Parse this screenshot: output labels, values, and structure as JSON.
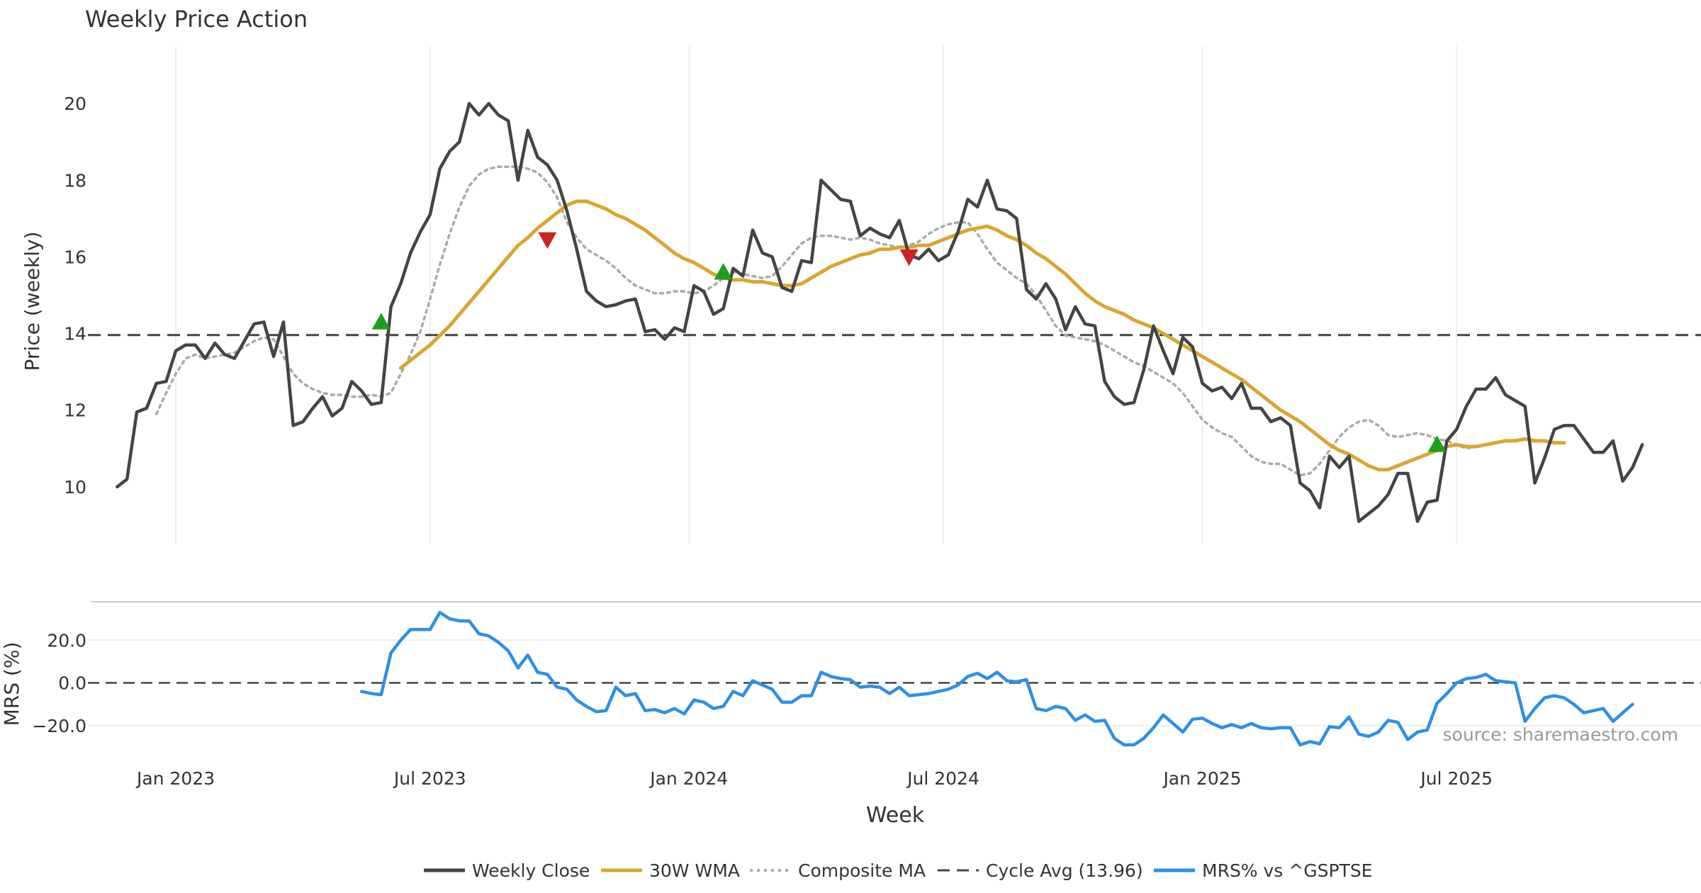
{
  "chart_data": {
    "type": "line",
    "title": "Weekly Price Action",
    "xlabel": "Week",
    "x_ticks": [
      {
        "label": "Jan 2023",
        "week": 6
      },
      {
        "label": "Jul 2023",
        "week": 32
      },
      {
        "label": "Jan 2024",
        "week": 58.5
      },
      {
        "label": "Jul 2024",
        "week": 84.5
      },
      {
        "label": "Jan 2025",
        "week": 111
      },
      {
        "label": "Jul 2025",
        "week": 137
      }
    ],
    "x_range": [
      -3,
      162
    ],
    "price_panel": {
      "ylabel": "Price (weekly)",
      "ylim": [
        8.5,
        21.5
      ],
      "yticks": [
        10,
        12,
        14,
        16,
        18,
        20
      ],
      "cycle_avg": 13.96,
      "series": [
        {
          "name": "Weekly Close",
          "color": "#444444",
          "start_week": 0,
          "values": [
            10.0,
            10.2,
            11.95,
            12.05,
            12.7,
            12.75,
            13.55,
            13.7,
            13.7,
            13.35,
            13.75,
            13.45,
            13.35,
            13.8,
            14.25,
            14.3,
            13.4,
            14.3,
            11.6,
            11.7,
            12.05,
            12.35,
            11.85,
            12.05,
            12.75,
            12.5,
            12.15,
            12.2,
            14.7,
            15.3,
            16.1,
            16.65,
            17.1,
            18.3,
            18.75,
            19.0,
            20.0,
            19.7,
            20.0,
            19.7,
            19.55,
            18.0,
            19.3,
            18.6,
            18.4,
            18.0,
            17.2,
            16.2,
            15.1,
            14.85,
            14.7,
            14.75,
            14.85,
            14.9,
            14.05,
            14.1,
            13.85,
            14.15,
            14.05,
            15.25,
            15.1,
            14.5,
            14.65,
            15.7,
            15.5,
            16.7,
            16.1,
            16.0,
            15.2,
            15.1,
            15.9,
            15.85,
            18.0,
            17.75,
            17.5,
            17.45,
            16.55,
            16.75,
            16.6,
            16.5,
            16.95,
            16.05,
            15.95,
            16.2,
            15.9,
            16.05,
            16.65,
            17.5,
            17.3,
            18.0,
            17.25,
            17.2,
            17.0,
            15.15,
            14.9,
            15.3,
            14.9,
            14.1,
            14.7,
            14.25,
            14.2,
            12.75,
            12.35,
            12.15,
            12.2,
            13.05,
            14.2,
            13.55,
            12.95,
            13.9,
            13.65,
            12.7,
            12.5,
            12.6,
            12.3,
            12.7,
            12.05,
            12.05,
            11.7,
            11.8,
            11.6,
            10.1,
            9.9,
            9.45,
            10.8,
            10.5,
            10.8,
            9.1,
            9.3,
            9.5,
            9.8,
            10.35,
            10.35,
            9.1,
            9.6,
            9.65,
            11.2,
            11.5,
            12.1,
            12.55,
            12.55,
            12.85,
            12.4,
            12.25,
            12.1,
            10.1,
            10.75,
            11.5,
            11.6,
            11.6,
            11.25,
            10.9,
            10.9,
            11.2,
            10.15,
            10.5,
            11.1
          ]
        },
        {
          "name": "30W WMA",
          "color": "#D9A62E",
          "start_week": 29,
          "values": [
            13.1,
            13.3,
            13.5,
            13.7,
            13.95,
            14.2,
            14.5,
            14.8,
            15.1,
            15.4,
            15.7,
            16.0,
            16.3,
            16.5,
            16.75,
            16.95,
            17.15,
            17.35,
            17.45,
            17.45,
            17.35,
            17.25,
            17.1,
            17.0,
            16.85,
            16.7,
            16.5,
            16.3,
            16.1,
            15.95,
            15.85,
            15.7,
            15.55,
            15.45,
            15.4,
            15.4,
            15.35,
            15.35,
            15.3,
            15.25,
            15.25,
            15.3,
            15.45,
            15.6,
            15.75,
            15.85,
            15.95,
            16.05,
            16.1,
            16.2,
            16.2,
            16.25,
            16.25,
            16.3,
            16.3,
            16.4,
            16.5,
            16.6,
            16.7,
            16.75,
            16.8,
            16.7,
            16.55,
            16.45,
            16.3,
            16.1,
            15.95,
            15.75,
            15.55,
            15.3,
            15.05,
            14.85,
            14.7,
            14.6,
            14.5,
            14.35,
            14.25,
            14.15,
            14.0,
            13.85,
            13.7,
            13.55,
            13.4,
            13.25,
            13.1,
            12.95,
            12.8,
            12.6,
            12.4,
            12.2,
            12.0,
            11.85,
            11.7,
            11.5,
            11.3,
            11.1,
            10.95,
            10.85,
            10.7,
            10.55,
            10.45,
            10.45,
            10.55,
            10.65,
            10.75,
            10.85,
            10.95,
            11.05,
            11.1,
            11.05,
            11.05,
            11.1,
            11.15,
            11.2,
            11.2,
            11.25,
            11.2,
            11.2,
            11.15,
            11.15
          ]
        },
        {
          "name": "Composite MA",
          "color": "#AAAAAA",
          "start_week": 4,
          "values": [
            11.9,
            12.45,
            12.95,
            13.35,
            13.45,
            13.35,
            13.4,
            13.45,
            13.5,
            13.65,
            13.8,
            13.9,
            13.85,
            13.4,
            12.95,
            12.7,
            12.55,
            12.45,
            12.4,
            12.4,
            12.35,
            12.35,
            12.4,
            12.35,
            12.45,
            12.95,
            13.45,
            14.05,
            14.9,
            15.8,
            16.6,
            17.3,
            17.85,
            18.15,
            18.3,
            18.35,
            18.35,
            18.35,
            18.3,
            18.2,
            17.95,
            17.55,
            16.9,
            16.5,
            16.2,
            16.05,
            15.9,
            15.7,
            15.45,
            15.25,
            15.15,
            15.05,
            15.05,
            15.1,
            15.1,
            15.05,
            15.1,
            15.25,
            15.45,
            15.6,
            15.55,
            15.5,
            15.45,
            15.5,
            15.75,
            16.05,
            16.35,
            16.5,
            16.55,
            16.55,
            16.5,
            16.45,
            16.5,
            16.45,
            16.35,
            16.3,
            16.25,
            16.3,
            16.4,
            16.6,
            16.75,
            16.85,
            16.9,
            16.9,
            16.6,
            16.2,
            15.85,
            15.65,
            15.45,
            15.3,
            15.0,
            14.6,
            14.2,
            13.95,
            13.9,
            13.85,
            13.8,
            13.7,
            13.55,
            13.4,
            13.25,
            13.15,
            13.0,
            12.85,
            12.7,
            12.45,
            12.1,
            11.75,
            11.55,
            11.4,
            11.3,
            11.05,
            10.8,
            10.65,
            10.6,
            10.6,
            10.45,
            10.3,
            10.35,
            10.6,
            10.95,
            11.3,
            11.55,
            11.7,
            11.75,
            11.6,
            11.35,
            11.3,
            11.35,
            11.4,
            11.35,
            11.25,
            11.2,
            11.1,
            11.0,
            11.05
          ]
        }
      ],
      "markers": [
        {
          "type": "buy",
          "week": 27,
          "value": 14.3,
          "color": "#1E9E1E"
        },
        {
          "type": "sell",
          "week": 44,
          "value": 16.45,
          "color": "#CC2222"
        },
        {
          "type": "buy",
          "week": 62,
          "value": 15.6,
          "color": "#1E9E1E"
        },
        {
          "type": "sell",
          "week": 81,
          "value": 16.0,
          "color": "#CC2222"
        },
        {
          "type": "buy",
          "week": 135,
          "value": 11.1,
          "color": "#1E9E1E"
        }
      ]
    },
    "mrs_panel": {
      "ylabel": "MRS (%)",
      "ylim": [
        -32,
        38
      ],
      "yticks": [
        20,
        0,
        -20
      ],
      "ytick_labels": [
        "20.0",
        "0.0",
        "−20.0"
      ],
      "zero_line": 0,
      "series": {
        "name": "MRS% vs ^GSPTSE",
        "color": "#2E8FE6",
        "start_week": 25,
        "values": [
          -4,
          -5,
          -5.5,
          14,
          20,
          25,
          25,
          25,
          33,
          30,
          29,
          29,
          23,
          22,
          19,
          15,
          7,
          13,
          5,
          4,
          -2,
          -3,
          -8,
          -11,
          -13.5,
          -13,
          -2,
          -6,
          -5,
          -13,
          -12.5,
          -14,
          -12,
          -14.5,
          -8,
          -9,
          -12,
          -11,
          -4,
          -6,
          1,
          -1,
          -3,
          -9,
          -9,
          -6,
          -6,
          5,
          3,
          2,
          1.5,
          -2,
          -1.5,
          -2,
          -5,
          -2,
          -6,
          -5.5,
          -5,
          -4,
          -3,
          -1,
          3,
          4.5,
          2,
          5,
          1,
          0.5,
          1.5,
          -12,
          -13,
          -11,
          -12,
          -17.5,
          -15,
          -18,
          -17.5,
          -26,
          -29,
          -29,
          -26,
          -21,
          -15,
          -19,
          -23,
          -17,
          -16.5,
          -19,
          -21,
          -19.5,
          -21,
          -19,
          -21,
          -21.5,
          -21,
          -21,
          -29,
          -27.5,
          -28.5,
          -20.5,
          -21,
          -16,
          -24,
          -25,
          -23,
          -17.5,
          -18.5,
          -26.5,
          -23,
          -22,
          -9.5,
          -5,
          0,
          2,
          2.5,
          4,
          1,
          0.5,
          0,
          -18,
          -12,
          -7,
          -6,
          -7,
          -10,
          -14,
          -13,
          -12,
          -18,
          -14,
          -10
        ]
      }
    },
    "source_note": "source: sharemaestro.com",
    "legend": [
      {
        "label": "Weekly Close",
        "color": "#444444",
        "style": "solid"
      },
      {
        "label": "30W WMA",
        "color": "#D9A62E",
        "style": "solid"
      },
      {
        "label": "Composite MA",
        "color": "#AAAAAA",
        "style": "dotted"
      },
      {
        "label": "Cycle Avg (13.96)",
        "color": "#444444",
        "style": "dashed"
      },
      {
        "label": "MRS% vs ^GSPTSE",
        "color": "#2E8FE6",
        "style": "solid"
      }
    ]
  }
}
